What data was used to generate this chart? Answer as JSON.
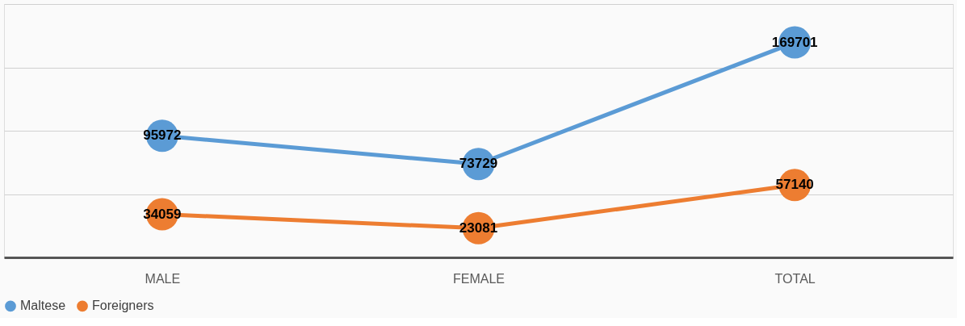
{
  "chart_data": {
    "type": "line",
    "categories": [
      "MALE",
      "FEMALE",
      "TOTAL"
    ],
    "series": [
      {
        "name": "Maltese",
        "color": "#5b9bd5",
        "values": [
          95972,
          73729,
          169701
        ]
      },
      {
        "name": "Foreigners",
        "color": "#ed7d31",
        "values": [
          34059,
          23081,
          57140
        ]
      }
    ],
    "ylim": [
      0,
      200000
    ],
    "yticks": [
      {
        "value": 0,
        "label": null
      },
      {
        "value": 50000,
        "label": null
      },
      {
        "value": 100000,
        "label": null
      },
      {
        "value": 150000,
        "label": null
      },
      {
        "value": 200000,
        "label": null
      }
    ],
    "tick_labels": "x",
    "grid": "y",
    "legend": "bottom",
    "marker": "circle",
    "line_style": "solid",
    "data_labels": true
  }
}
